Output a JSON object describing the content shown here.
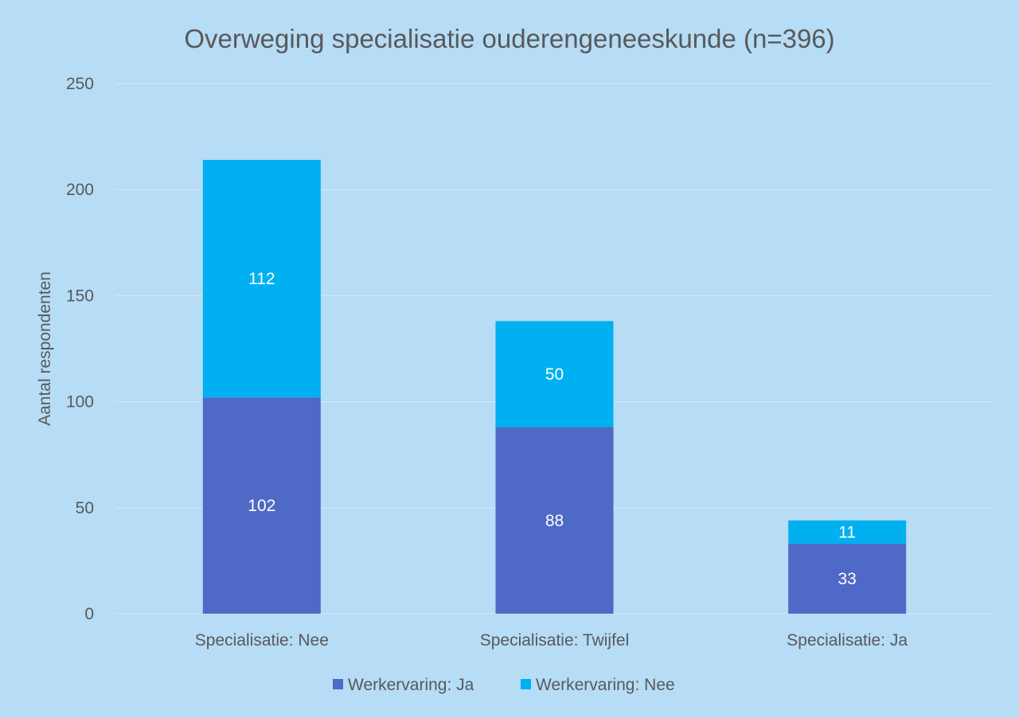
{
  "chart_data": {
    "type": "bar",
    "stacked": true,
    "title": "Overweging specialisatie ouderengeneeskunde (n=396)",
    "xlabel": "",
    "ylabel": "Aantal respondenten",
    "ylim": [
      0,
      250
    ],
    "yticks": [
      "0",
      "50",
      "100",
      "150",
      "200",
      "250"
    ],
    "ytick_values": [
      0,
      50,
      100,
      150,
      200,
      250
    ],
    "categories": [
      "Specialisatie: Nee",
      "Specialisatie: Twijfel",
      "Specialisatie: Ja"
    ],
    "series": [
      {
        "name": "Werkervaring: Ja",
        "values": [
          102,
          88,
          33
        ],
        "labels": [
          "102",
          "88",
          "33"
        ],
        "color": "#4f69c6"
      },
      {
        "name": "Werkervaring: Nee",
        "values": [
          112,
          50,
          11
        ],
        "labels": [
          "112",
          "50",
          "11"
        ],
        "color": "#00b0f0"
      }
    ],
    "grid": true,
    "legend_position": "bottom",
    "background_color": "#b6dcf6"
  }
}
